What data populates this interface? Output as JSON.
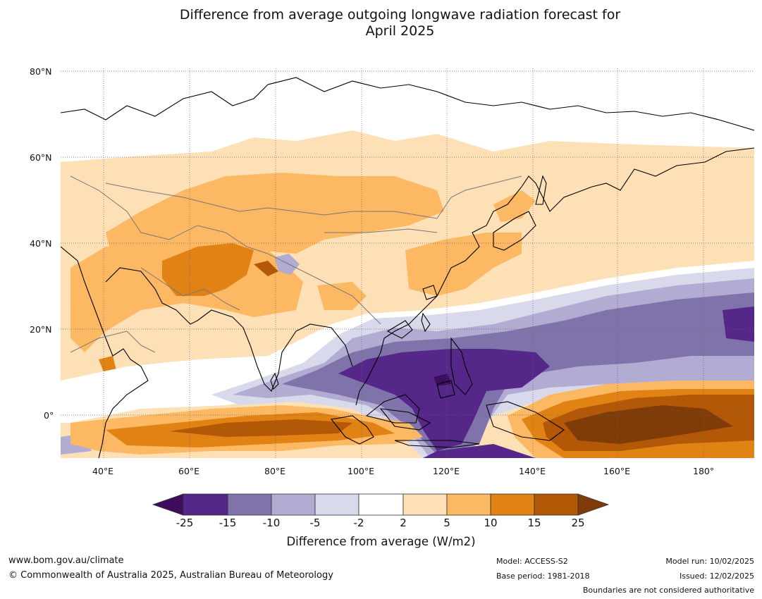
{
  "title_line1": "Difference from average outgoing longwave radiation forecast for",
  "title_line2": "April 2025",
  "lat_labels": [
    "80°N",
    "60°N",
    "40°N",
    "20°N",
    "0°"
  ],
  "lon_labels": [
    "40°E",
    "60°E",
    "80°E",
    "100°E",
    "120°E",
    "140°E",
    "160°E",
    "180°"
  ],
  "colorbar": {
    "ticks": [
      "-25",
      "-15",
      "-10",
      "-5",
      "-2",
      "2",
      "5",
      "10",
      "15",
      "25"
    ],
    "colors": [
      "#3f0d5e",
      "#542788",
      "#8073ac",
      "#b2abd2",
      "#d8daeb",
      "#ffffff",
      "#fee0b6",
      "#fdb863",
      "#e08214",
      "#b35806",
      "#7f3b08"
    ],
    "label": "Difference from average (W/m2)"
  },
  "footer": {
    "website": "www.bom.gov.au/climate",
    "copyright": "© Commonwealth of Australia 2025, Australian Bureau of Meteorology",
    "model": "Model: ACCESS-S2",
    "base_period": "Base period: 1981-2018",
    "model_run": "Model run: 10/02/2025",
    "issued": "Issued: 12/02/2025",
    "disclaimer": "Boundaries are not considered authoritative"
  }
}
